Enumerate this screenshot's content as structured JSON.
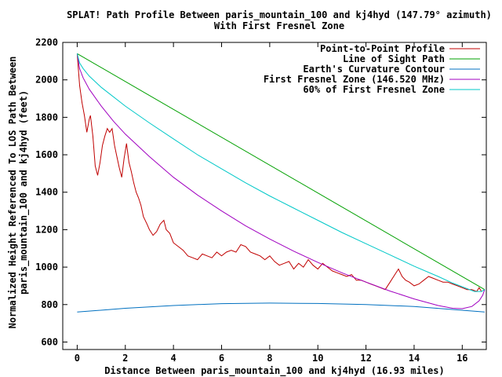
{
  "chart_data": {
    "type": "line",
    "title": "SPLAT! Path Profile Between paris_mountain_100 and kj4hyd (147.79° azimuth)",
    "subtitle": "With First Fresnel Zone",
    "xlabel": "Distance Between paris_mountain_100 and kj4hyd (16.93 miles)",
    "ylabel_line1": "Normalized Height Referenced To LOS Path Between",
    "ylabel_line2": "paris_mountain_100 and kj4hyd (feet)",
    "xlim": [
      -0.6,
      17.0
    ],
    "ylim": [
      560,
      2200
    ],
    "x_ticks": [
      0,
      2,
      4,
      6,
      8,
      10,
      12,
      14,
      16
    ],
    "y_ticks": [
      600,
      800,
      1000,
      1200,
      1400,
      1600,
      1800,
      2000,
      2200
    ],
    "grid": false,
    "legend_position": "top-right",
    "series": [
      {
        "name": "Point-to-Point Profile",
        "color": "#c00000",
        "points": [
          [
            0.0,
            2140
          ],
          [
            0.1,
            1970
          ],
          [
            0.2,
            1880
          ],
          [
            0.3,
            1810
          ],
          [
            0.4,
            1720
          ],
          [
            0.5,
            1790
          ],
          [
            0.55,
            1810
          ],
          [
            0.65,
            1700
          ],
          [
            0.75,
            1540
          ],
          [
            0.85,
            1490
          ],
          [
            0.95,
            1560
          ],
          [
            1.05,
            1650
          ],
          [
            1.15,
            1700
          ],
          [
            1.25,
            1740
          ],
          [
            1.35,
            1720
          ],
          [
            1.45,
            1740
          ],
          [
            1.55,
            1650
          ],
          [
            1.65,
            1590
          ],
          [
            1.75,
            1530
          ],
          [
            1.85,
            1480
          ],
          [
            1.95,
            1580
          ],
          [
            2.05,
            1660
          ],
          [
            2.15,
            1560
          ],
          [
            2.25,
            1510
          ],
          [
            2.35,
            1450
          ],
          [
            2.45,
            1400
          ],
          [
            2.55,
            1370
          ],
          [
            2.65,
            1330
          ],
          [
            2.75,
            1270
          ],
          [
            2.9,
            1230
          ],
          [
            3.0,
            1200
          ],
          [
            3.15,
            1170
          ],
          [
            3.3,
            1190
          ],
          [
            3.45,
            1230
          ],
          [
            3.6,
            1250
          ],
          [
            3.7,
            1200
          ],
          [
            3.85,
            1180
          ],
          [
            4.0,
            1130
          ],
          [
            4.2,
            1110
          ],
          [
            4.4,
            1090
          ],
          [
            4.6,
            1060
          ],
          [
            4.8,
            1050
          ],
          [
            5.0,
            1040
          ],
          [
            5.2,
            1070
          ],
          [
            5.4,
            1060
          ],
          [
            5.6,
            1050
          ],
          [
            5.8,
            1080
          ],
          [
            6.0,
            1060
          ],
          [
            6.2,
            1080
          ],
          [
            6.4,
            1090
          ],
          [
            6.6,
            1080
          ],
          [
            6.8,
            1120
          ],
          [
            7.0,
            1110
          ],
          [
            7.2,
            1080
          ],
          [
            7.4,
            1070
          ],
          [
            7.6,
            1060
          ],
          [
            7.8,
            1040
          ],
          [
            8.0,
            1060
          ],
          [
            8.2,
            1030
          ],
          [
            8.4,
            1010
          ],
          [
            8.6,
            1020
          ],
          [
            8.8,
            1030
          ],
          [
            9.0,
            990
          ],
          [
            9.2,
            1020
          ],
          [
            9.4,
            1000
          ],
          [
            9.6,
            1040
          ],
          [
            9.8,
            1010
          ],
          [
            10.0,
            990
          ],
          [
            10.2,
            1020
          ],
          [
            10.4,
            1000
          ],
          [
            10.6,
            980
          ],
          [
            10.8,
            970
          ],
          [
            11.0,
            960
          ],
          [
            11.2,
            950
          ],
          [
            11.4,
            960
          ],
          [
            11.6,
            930
          ],
          [
            11.8,
            930
          ],
          [
            12.0,
            920
          ],
          [
            12.2,
            910
          ],
          [
            12.4,
            900
          ],
          [
            12.6,
            890
          ],
          [
            12.8,
            880
          ],
          [
            13.0,
            920
          ],
          [
            13.2,
            960
          ],
          [
            13.35,
            990
          ],
          [
            13.5,
            950
          ],
          [
            13.65,
            930
          ],
          [
            13.8,
            920
          ],
          [
            14.0,
            900
          ],
          [
            14.2,
            910
          ],
          [
            14.4,
            930
          ],
          [
            14.6,
            950
          ],
          [
            14.8,
            940
          ],
          [
            15.0,
            930
          ],
          [
            15.2,
            920
          ],
          [
            15.4,
            920
          ],
          [
            15.6,
            910
          ],
          [
            15.8,
            900
          ],
          [
            16.0,
            890
          ],
          [
            16.2,
            880
          ],
          [
            16.4,
            880
          ],
          [
            16.6,
            870
          ],
          [
            16.7,
            890
          ],
          [
            16.8,
            870
          ]
        ]
      },
      {
        "name": "Line of Sight Path",
        "color": "#00a000",
        "points": [
          [
            0.0,
            2140
          ],
          [
            16.93,
            880
          ]
        ]
      },
      {
        "name": "Earth's Curvature Contour",
        "color": "#0070c0",
        "points": [
          [
            0.0,
            760
          ],
          [
            2.0,
            780
          ],
          [
            4.0,
            795
          ],
          [
            6.0,
            805
          ],
          [
            8.0,
            808
          ],
          [
            10.0,
            806
          ],
          [
            12.0,
            800
          ],
          [
            14.0,
            790
          ],
          [
            16.93,
            760
          ]
        ]
      },
      {
        "name": "First Fresnel Zone (146.520 MHz)",
        "color": "#a000c0",
        "points": [
          [
            0.0,
            2140
          ],
          [
            0.1,
            2060
          ],
          [
            0.25,
            2010
          ],
          [
            0.5,
            1950
          ],
          [
            1.0,
            1860
          ],
          [
            1.5,
            1780
          ],
          [
            2.0,
            1710
          ],
          [
            3.0,
            1590
          ],
          [
            4.0,
            1480
          ],
          [
            5.0,
            1385
          ],
          [
            6.0,
            1300
          ],
          [
            7.0,
            1220
          ],
          [
            8.0,
            1150
          ],
          [
            9.0,
            1085
          ],
          [
            10.0,
            1025
          ],
          [
            11.0,
            970
          ],
          [
            12.0,
            920
          ],
          [
            13.0,
            872
          ],
          [
            14.0,
            830
          ],
          [
            15.0,
            795
          ],
          [
            15.6,
            780
          ],
          [
            16.0,
            778
          ],
          [
            16.4,
            790
          ],
          [
            16.7,
            820
          ],
          [
            16.85,
            850
          ],
          [
            16.93,
            880
          ]
        ]
      },
      {
        "name": "60% of First Fresnel Zone",
        "color": "#00c8c8",
        "points": [
          [
            0.0,
            2140
          ],
          [
            0.1,
            2090
          ],
          [
            0.25,
            2060
          ],
          [
            0.5,
            2020
          ],
          [
            1.0,
            1960
          ],
          [
            2.0,
            1860
          ],
          [
            3.0,
            1770
          ],
          [
            4.0,
            1685
          ],
          [
            5.0,
            1600
          ],
          [
            6.0,
            1525
          ],
          [
            7.0,
            1450
          ],
          [
            8.0,
            1380
          ],
          [
            9.0,
            1315
          ],
          [
            10.0,
            1250
          ],
          [
            11.0,
            1185
          ],
          [
            12.0,
            1125
          ],
          [
            13.0,
            1065
          ],
          [
            14.0,
            1005
          ],
          [
            15.0,
            950
          ],
          [
            15.6,
            915
          ],
          [
            16.0,
            895
          ],
          [
            16.5,
            870
          ],
          [
            16.8,
            870
          ],
          [
            16.93,
            880
          ]
        ]
      }
    ]
  }
}
